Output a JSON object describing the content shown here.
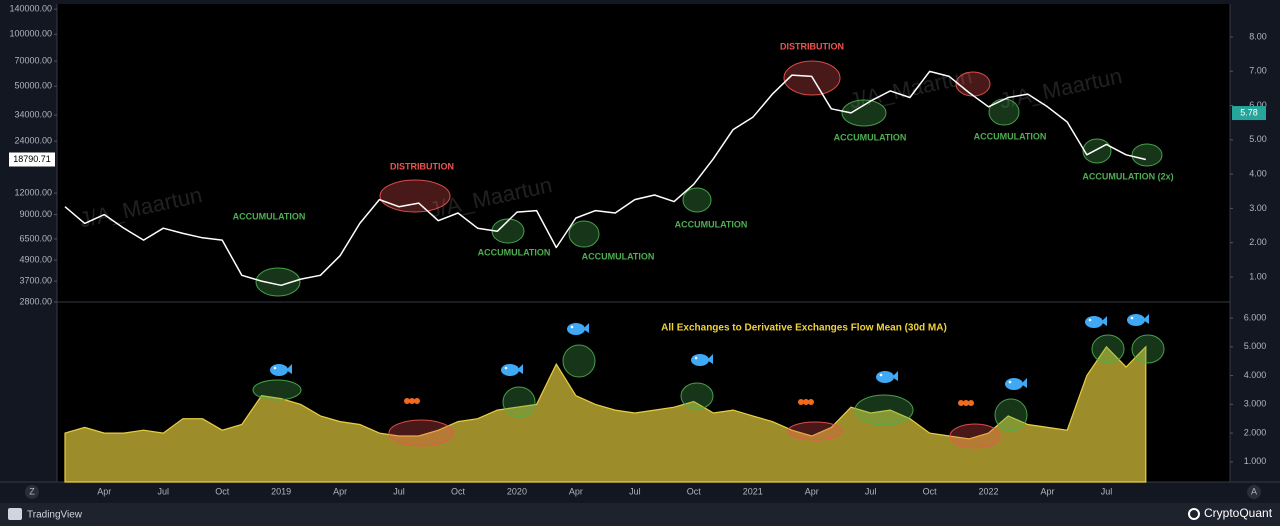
{
  "chart_data": [
    {
      "type": "line",
      "color": "#ffffff",
      "log_scale": true,
      "values": [
        10000,
        8000,
        9000,
        7500,
        6400,
        7500,
        7000,
        6600,
        6400,
        4000,
        3700,
        3500,
        3800,
        4000,
        5200,
        8000,
        11000,
        10000,
        10500,
        8300,
        9200,
        7500,
        7200,
        9300,
        9500,
        5800,
        8600,
        9500,
        9200,
        11000,
        11700,
        10700,
        13500,
        19000,
        28000,
        33000,
        45000,
        58000,
        57000,
        37000,
        35000,
        41000,
        47000,
        43000,
        61000,
        57000,
        46000,
        38000,
        43000,
        45000,
        38000,
        31000,
        20000,
        23000,
        20000,
        18790.71
      ],
      "ylim": [
        2800,
        150000
      ],
      "yticks": [
        {
          "value": 140000,
          "label": "140000.00"
        },
        {
          "value": 100000,
          "label": "100000.00"
        },
        {
          "value": 70000,
          "label": "70000.00"
        },
        {
          "value": 50000,
          "label": "50000.00"
        },
        {
          "value": 34000,
          "label": "34000.00"
        },
        {
          "value": 24000,
          "label": "24000.00"
        },
        {
          "value": 12000,
          "label": "12000.00"
        },
        {
          "value": 9000,
          "label": "9000.00"
        },
        {
          "value": 6500,
          "label": "6500.00"
        },
        {
          "value": 4900,
          "label": "4900.00"
        },
        {
          "value": 3700,
          "label": "3700.00"
        },
        {
          "value": 2800,
          "label": "2800.00"
        }
      ],
      "y2lim": [
        0.27,
        8.96
      ],
      "y2ticks": [
        {
          "value": 1,
          "label": "1.00"
        },
        {
          "value": 2,
          "label": "2.00"
        },
        {
          "value": 3,
          "label": "3.00"
        },
        {
          "value": 4,
          "label": "4.00"
        },
        {
          "value": 5,
          "label": "5.00"
        },
        {
          "value": 6,
          "label": "6.00"
        },
        {
          "value": 7,
          "label": "7.00"
        },
        {
          "value": 8,
          "label": "8.00"
        }
      ],
      "y2_marker": 5.78,
      "watermark": "J/A_Maartun",
      "annotations": [
        {
          "text": "ACCUMULATION",
          "color": "#4caf50"
        },
        {
          "text": "DISTRIBUTION",
          "color": "#ef5350"
        },
        {
          "text": "ACCUMULATION",
          "color": "#4caf50"
        },
        {
          "text": "ACCUMULATION",
          "color": "#4caf50"
        },
        {
          "text": "ACCUMULATION",
          "color": "#4caf50"
        },
        {
          "text": "DISTRIBUTION",
          "color": "#ef5350"
        },
        {
          "text": "ACCUMULATION",
          "color": "#4caf50"
        },
        {
          "text": "ACCUMULATION",
          "color": "#4caf50"
        },
        {
          "text": "ACCUMULATION (2x)",
          "color": "#4caf50"
        }
      ]
    },
    {
      "type": "area",
      "title": "All Exchanges to Derivative Exchanges Flow Mean (30d MA)",
      "color": "#b8a631",
      "categories": [
        null,
        null,
        "Apr",
        null,
        null,
        "Jul",
        null,
        null,
        "Oct",
        null,
        null,
        "2019",
        null,
        null,
        "Apr",
        null,
        null,
        "Jul",
        null,
        null,
        "Oct",
        null,
        null,
        "2020",
        null,
        null,
        "Apr",
        null,
        null,
        "Jul",
        null,
        null,
        "Oct",
        null,
        null,
        "2021",
        null,
        null,
        "Apr",
        null,
        null,
        "Jul",
        null,
        null,
        "Oct",
        null,
        null,
        "2022",
        null,
        null,
        "Apr",
        null,
        null,
        "Jul",
        null,
        null
      ],
      "values": [
        2.0,
        2.2,
        2.0,
        2.0,
        2.1,
        2.0,
        2.5,
        2.5,
        2.1,
        2.3,
        3.3,
        3.2,
        3.0,
        2.6,
        2.4,
        2.3,
        2.0,
        1.9,
        1.9,
        2.1,
        2.4,
        2.5,
        2.8,
        2.9,
        3.0,
        4.4,
        3.3,
        3.0,
        2.8,
        2.7,
        2.8,
        2.9,
        3.1,
        2.7,
        2.8,
        2.6,
        2.4,
        2.1,
        1.9,
        2.2,
        2.9,
        2.7,
        2.8,
        2.5,
        2.0,
        1.9,
        1.8,
        2.0,
        2.6,
        2.3,
        2.2,
        2.1,
        4.0,
        5.0,
        4.3,
        5.0
      ],
      "ylim": [
        0.3,
        6.49
      ],
      "yticks": [
        {
          "value": 1,
          "label": "1.000"
        },
        {
          "value": 2,
          "label": "2.000"
        },
        {
          "value": 3,
          "label": "3.000"
        },
        {
          "value": 4,
          "label": "4.000"
        },
        {
          "value": 5,
          "label": "5.000"
        },
        {
          "value": 6,
          "label": "6.000"
        }
      ]
    }
  ],
  "ui": {
    "left_button": "Z",
    "right_button": "A",
    "brand_left": "TradingView",
    "brand_right": "CryptoQuant"
  }
}
